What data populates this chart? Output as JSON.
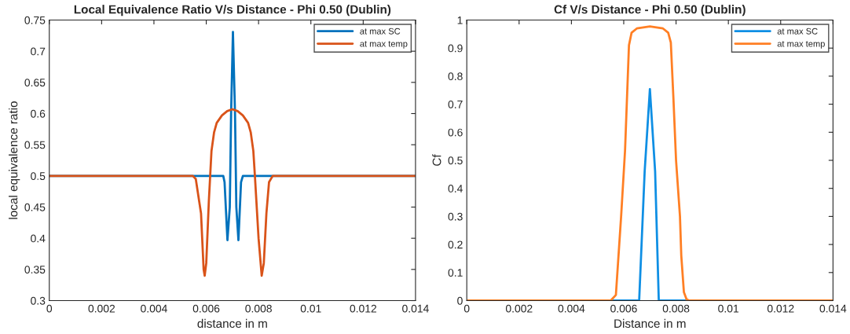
{
  "chart_data": [
    {
      "type": "line",
      "title": "Local Equivalence Ratio V/s Distance - Phi 0.50 (Dublin)",
      "xlabel": "distance in m",
      "ylabel": "local equivalence ratio",
      "xlim": [
        0,
        0.014
      ],
      "xticks": [
        0,
        0.002,
        0.004,
        0.006,
        0.008,
        0.01,
        0.012,
        0.014
      ],
      "ylim": [
        0.3,
        0.75
      ],
      "yticks": [
        0.3,
        0.35,
        0.4,
        0.45,
        0.5,
        0.55,
        0.6,
        0.65,
        0.7,
        0.75
      ],
      "legend": "top right",
      "grid": false,
      "line_style": "solid",
      "series": [
        {
          "name": "at max SC",
          "color": "#0072bd",
          "x": [
            0,
            0.00665,
            0.0067,
            0.00681,
            0.0069,
            0.00695,
            0.00702,
            0.0071,
            0.00715,
            0.00723,
            0.00733,
            0.0074,
            0.014
          ],
          "values": [
            0.5,
            0.5,
            0.49,
            0.397,
            0.45,
            0.6,
            0.731,
            0.6,
            0.45,
            0.397,
            0.49,
            0.5,
            0.5
          ]
        },
        {
          "name": "at max temp",
          "color": "#d95319",
          "x": [
            0,
            0.00549,
            0.0056,
            0.0058,
            0.0059,
            0.00594,
            0.006,
            0.0061,
            0.00615,
            0.0062,
            0.0063,
            0.0064,
            0.0066,
            0.0068,
            0.007,
            0.0072,
            0.0074,
            0.0076,
            0.0077,
            0.0078,
            0.00786,
            0.008,
            0.00812,
            0.0082,
            0.0083,
            0.0084,
            0.00854,
            0.014
          ],
          "values": [
            0.5,
            0.5,
            0.495,
            0.44,
            0.35,
            0.34,
            0.36,
            0.46,
            0.5,
            0.54,
            0.57,
            0.585,
            0.597,
            0.604,
            0.607,
            0.604,
            0.597,
            0.585,
            0.57,
            0.54,
            0.5,
            0.4,
            0.34,
            0.36,
            0.44,
            0.49,
            0.5,
            0.5
          ]
        }
      ]
    },
    {
      "type": "line",
      "title": "Cf V/s Distance - Phi 0.50 (Dublin)",
      "xlabel": "Distance in m",
      "ylabel": "Cf",
      "xlim": [
        0,
        0.014
      ],
      "xticks": [
        0,
        0.002,
        0.004,
        0.006,
        0.008,
        0.01,
        0.012,
        0.014
      ],
      "ylim": [
        0,
        1
      ],
      "yticks": [
        0,
        0.1,
        0.2,
        0.3,
        0.4,
        0.5,
        0.6,
        0.7,
        0.8,
        0.9,
        1
      ],
      "legend": "top right",
      "grid": false,
      "line_style": "solid",
      "series": [
        {
          "name": "at max SC",
          "color": "#0f8fe4",
          "x": [
            0,
            0.00659,
            0.0068,
            0.007,
            0.0072,
            0.00734,
            0.014
          ],
          "values": [
            0,
            0,
            0.46,
            0.754,
            0.46,
            0,
            0
          ]
        },
        {
          "name": "at max temp",
          "color": "#ff7f24",
          "x": [
            0,
            0.0055,
            0.00555,
            0.0057,
            0.0058,
            0.0059,
            0.00605,
            0.0062,
            0.0063,
            0.0065,
            0.007,
            0.0075,
            0.0077,
            0.0078,
            0.0079,
            0.008,
            0.00815,
            0.0082,
            0.0083,
            0.0084,
            0.0085,
            0.014
          ],
          "values": [
            0,
            0,
            0.005,
            0.02,
            0.16,
            0.3,
            0.535,
            0.91,
            0.955,
            0.97,
            0.977,
            0.97,
            0.955,
            0.92,
            0.72,
            0.5,
            0.3,
            0.16,
            0.03,
            0.005,
            0,
            0
          ]
        }
      ]
    }
  ]
}
